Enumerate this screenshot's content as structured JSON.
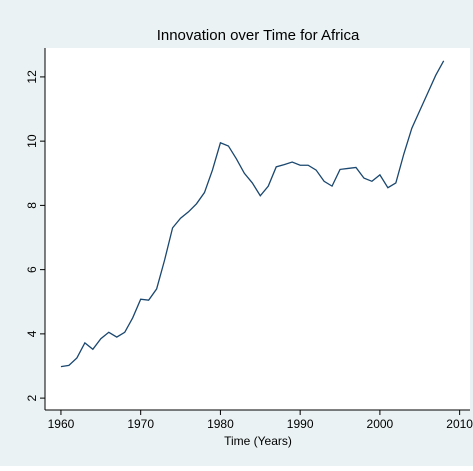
{
  "chart_data": {
    "type": "line",
    "title": "Innovation over Time for Africa",
    "xlabel": "Time (Years)",
    "x": [
      1960,
      1961,
      1962,
      1963,
      1964,
      1965,
      1966,
      1967,
      1968,
      1969,
      1970,
      1971,
      1972,
      1973,
      1974,
      1975,
      1976,
      1977,
      1978,
      1979,
      1980,
      1981,
      1982,
      1983,
      1984,
      1985,
      1986,
      1987,
      1988,
      1989,
      1990,
      1991,
      1992,
      1993,
      1994,
      1995,
      1996,
      1997,
      1998,
      1999,
      2000,
      2001,
      2002,
      2003,
      2004,
      2005,
      2006,
      2007,
      2008
    ],
    "values": [
      2.98,
      3.02,
      3.25,
      3.72,
      3.52,
      3.85,
      4.05,
      3.9,
      4.05,
      4.5,
      5.08,
      5.05,
      5.4,
      6.3,
      7.3,
      7.6,
      7.8,
      8.05,
      8.4,
      9.1,
      9.95,
      9.85,
      9.45,
      9.0,
      8.7,
      8.3,
      8.6,
      9.2,
      9.27,
      9.35,
      9.25,
      9.25,
      9.1,
      8.75,
      8.6,
      9.12,
      9.15,
      9.18,
      8.85,
      8.75,
      8.95,
      8.55,
      8.7,
      9.6,
      10.4,
      10.95,
      11.5,
      12.05,
      12.5
    ],
    "color": "#1a476f",
    "xlim": [
      1958,
      2011.3
    ],
    "ylim": [
      1.63,
      12.9
    ],
    "xticks": [
      1960,
      1970,
      1980,
      1990,
      2000,
      2010
    ],
    "yticks": [
      2,
      4,
      6,
      8,
      10,
      12
    ]
  }
}
